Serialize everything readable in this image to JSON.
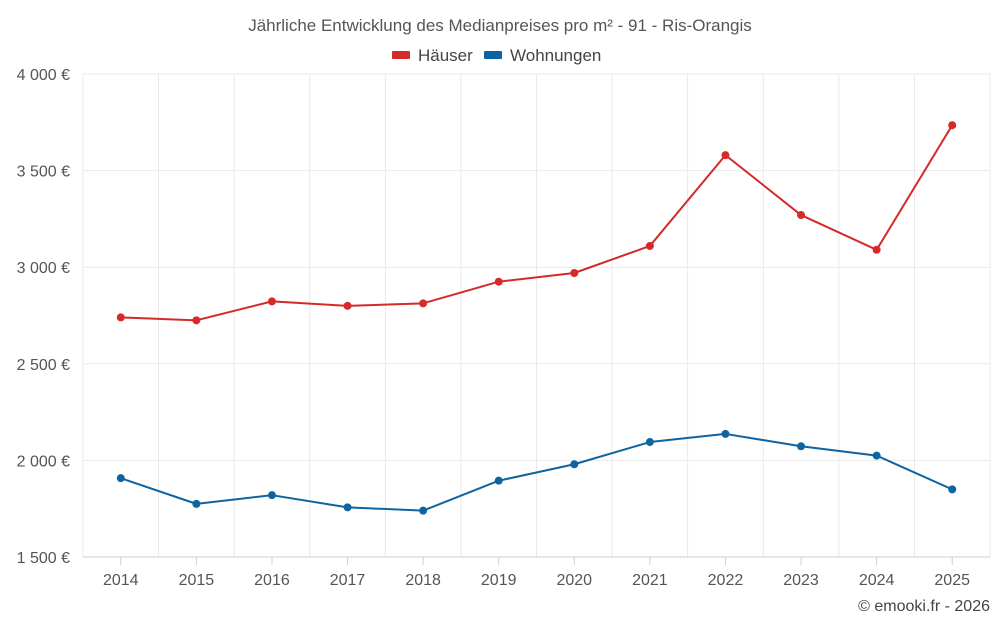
{
  "chart_data": {
    "type": "line",
    "title": "Jährliche Entwicklung des Medianpreises pro m² - 91 - Ris-Orangis",
    "categories": [
      "2014",
      "2015",
      "2016",
      "2017",
      "2018",
      "2019",
      "2020",
      "2021",
      "2022",
      "2023",
      "2024",
      "2025"
    ],
    "series": [
      {
        "name": "Häuser",
        "color": "#d42a2a",
        "values": [
          2740,
          2725,
          2823,
          2800,
          2813,
          2925,
          2970,
          3110,
          3580,
          3270,
          3090,
          3735
        ]
      },
      {
        "name": "Wohnungen",
        "color": "#0e64a0",
        "values": [
          1908,
          1775,
          1820,
          1757,
          1740,
          1895,
          1980,
          2095,
          2137,
          2073,
          2025,
          1850
        ]
      }
    ],
    "yticks": [
      1500,
      2000,
      2500,
      3000,
      3500,
      4000
    ],
    "ytick_labels": [
      "1 500 €",
      "2 000 €",
      "2 500 €",
      "3 000 €",
      "3 500 €",
      "4 000 €"
    ],
    "ylim": [
      1500,
      4000
    ],
    "xlabel": "",
    "ylabel": "",
    "legend_position": "top-center",
    "grid": true
  },
  "credit": "© emooki.fr - 2026"
}
